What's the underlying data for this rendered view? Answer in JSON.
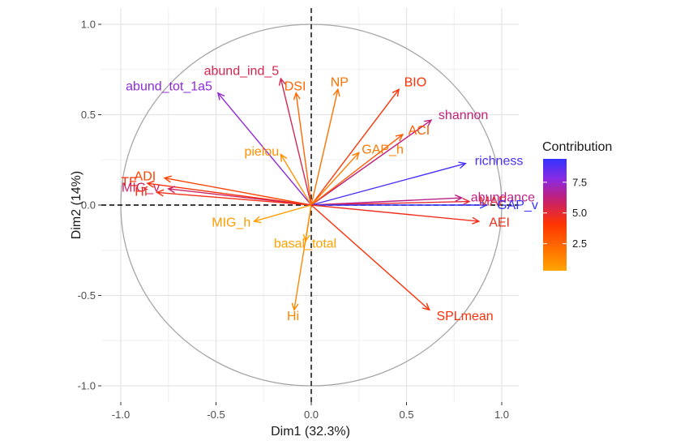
{
  "chart_data": {
    "type": "scatter",
    "subtype": "pca-variable-correlation-circle",
    "title": "",
    "xlabel": "Dim1 (32.3%)",
    "ylabel": "Dim2 (14%)",
    "xlim": [
      -1.0,
      1.0
    ],
    "ylim": [
      -1.0,
      1.0
    ],
    "x_ticks": [
      "-1.0",
      "-0.5",
      "0.0",
      "0.5",
      "1.0"
    ],
    "y_ticks": [
      "-1.0",
      "-0.5",
      "0.0",
      "0.5",
      "1.0"
    ],
    "grid": true,
    "unit_circle": true,
    "legend": {
      "title": "Contribution",
      "placement": "right",
      "ticks": [
        "7.5",
        "5.0",
        "2.5"
      ],
      "tick_values": [
        7.5,
        5.0,
        2.5
      ],
      "range": [
        0.3,
        9.4
      ],
      "colors": [
        "#FFA500",
        "#FF3300",
        "#C0207A",
        "#8A2BE2",
        "#3333FF"
      ]
    },
    "variables": [
      {
        "name": "abund_ind_5",
        "x": -0.16,
        "y": 0.7,
        "contrib": 5.5
      },
      {
        "name": "abund_tot_1a5",
        "x": -0.49,
        "y": 0.62,
        "contrib": 7.6
      },
      {
        "name": "DSI",
        "x": -0.08,
        "y": 0.62,
        "contrib": 2.4
      },
      {
        "name": "NP",
        "x": 0.14,
        "y": 0.64,
        "contrib": 2.0
      },
      {
        "name": "BIO",
        "x": 0.46,
        "y": 0.64,
        "contrib": 4.2
      },
      {
        "name": "shannon",
        "x": 0.63,
        "y": 0.47,
        "contrib": 6.2
      },
      {
        "name": "pielou",
        "x": -0.16,
        "y": 0.28,
        "contrib": 1.0
      },
      {
        "name": "ACI",
        "x": 0.48,
        "y": 0.39,
        "contrib": 2.8
      },
      {
        "name": "GAP_h",
        "x": 0.25,
        "y": 0.29,
        "contrib": 1.7
      },
      {
        "name": "richness",
        "x": 0.81,
        "y": 0.23,
        "contrib": 9.0
      },
      {
        "name": "TE",
        "x": -0.86,
        "y": 0.12,
        "contrib": 4.3
      },
      {
        "name": "ADI",
        "x": -0.77,
        "y": 0.15,
        "contrib": 3.6
      },
      {
        "name": "MIG_v",
        "x": -0.75,
        "y": 0.09,
        "contrib": 5.8
      },
      {
        "name": "Hf",
        "x": -0.81,
        "y": 0.07,
        "contrib": 4.5
      },
      {
        "name": "abundance",
        "x": 0.79,
        "y": 0.04,
        "contrib": 6.4
      },
      {
        "name": "MAF",
        "x": 0.83,
        "y": 0.02,
        "contrib": 5.1
      },
      {
        "name": "GAP_v",
        "x": 0.92,
        "y": 0.0,
        "contrib": 9.4
      },
      {
        "name": "AEI",
        "x": 0.88,
        "y": -0.09,
        "contrib": 4.6
      },
      {
        "name": "MIG_h",
        "x": -0.3,
        "y": -0.09,
        "contrib": 0.6
      },
      {
        "name": "basal_total",
        "x": -0.03,
        "y": -0.2,
        "contrib": 0.4
      },
      {
        "name": "Hi",
        "x": -0.09,
        "y": -0.58,
        "contrib": 1.3
      },
      {
        "name": "SPLmean",
        "x": 0.62,
        "y": -0.58,
        "contrib": 4.3
      }
    ]
  }
}
